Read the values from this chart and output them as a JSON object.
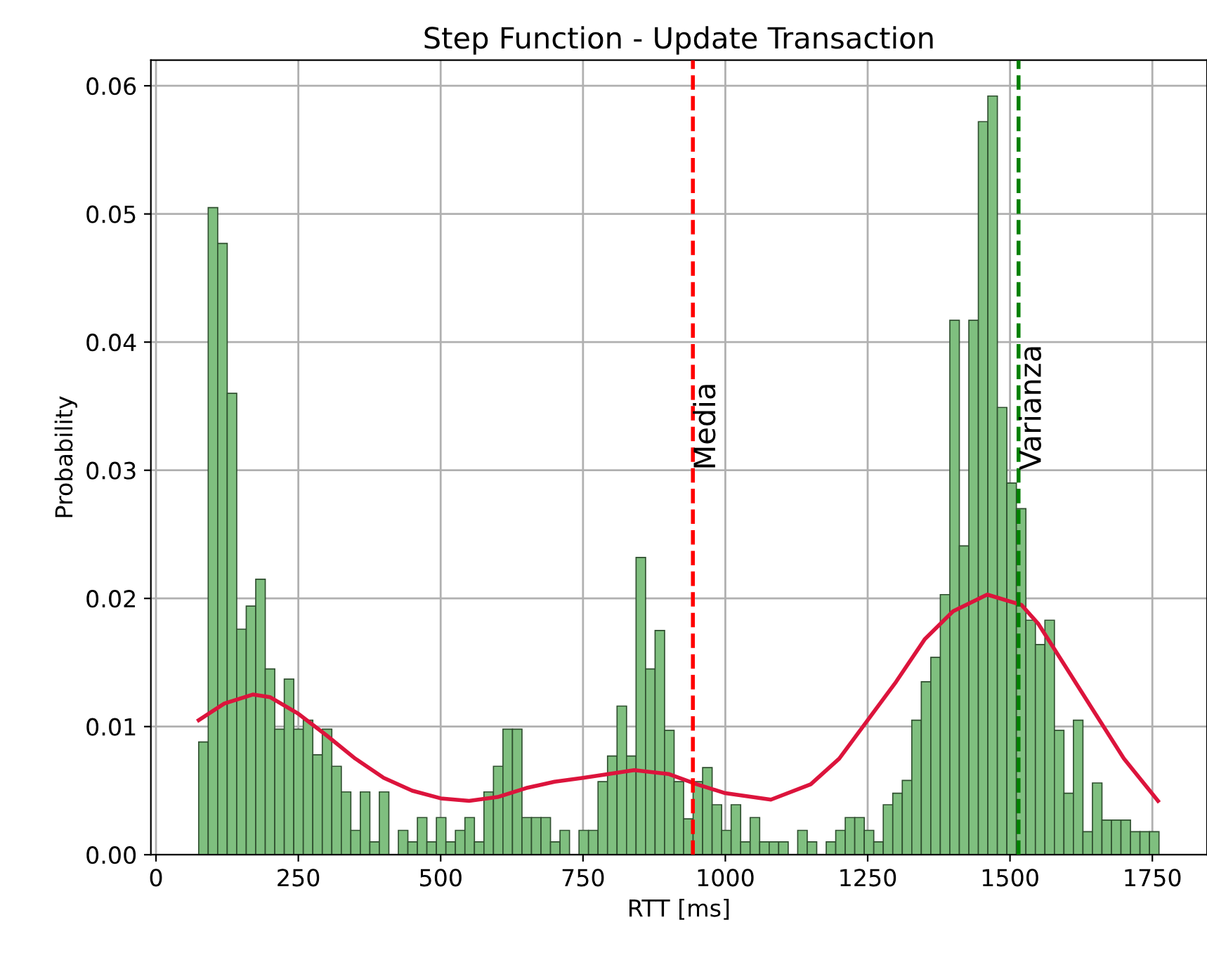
{
  "chart_data": {
    "type": "histogram",
    "title": "Step Function - Update Transaction",
    "xlabel": "RTT [ms]",
    "ylabel": "Probability",
    "series": [
      {
        "color": "#7fbf7f",
        "bins": [
          75,
          91.7,
          108.4,
          125.1,
          141.8,
          158.5,
          175.2,
          191.9,
          208.6,
          225.3,
          242,
          258.7,
          275.4,
          292.1,
          308.8,
          325.5,
          342.2,
          358.9,
          375.6,
          392.3,
          409,
          425.7,
          442.4,
          459.1,
          475.8,
          492.5,
          509.2,
          525.9,
          542.6,
          559.3,
          576,
          592.7,
          609.4,
          626.1,
          642.8,
          659.5,
          676.2,
          692.9,
          709.6,
          726.3,
          743,
          759.7,
          776.4,
          793.1,
          809.8,
          826.5,
          843.2,
          859.9,
          876.6,
          893.3,
          910,
          926.7,
          943.4,
          960.1,
          976.8,
          993.5,
          1010.2,
          1026.9,
          1043.6,
          1060.3,
          1077,
          1093.7,
          1110.4,
          1127.1,
          1143.8,
          1160.5,
          1177.2,
          1193.9,
          1210.6,
          1227.3,
          1244,
          1260.7,
          1277.4,
          1294.1,
          1310.8,
          1327.5,
          1344.2,
          1360.9,
          1377.6,
          1394.3,
          1411,
          1427.7,
          1444.4,
          1461.1,
          1477.8,
          1494.5,
          1511.2,
          1527.9,
          1544.6,
          1561.3,
          1578,
          1594.7,
          1611.4,
          1628.1,
          1644.8,
          1661.5,
          1678.2,
          1694.9,
          1711.6,
          1728.3,
          1745,
          1761.7
        ],
        "values": [
          0.0088,
          0.0505,
          0.0477,
          0.036,
          0.0176,
          0.0194,
          0.0215,
          0.0145,
          0.0098,
          0.0137,
          0.0098,
          0.0105,
          0.0078,
          0.0098,
          0.0069,
          0.0049,
          0.0019,
          0.0049,
          0.001,
          0.0049,
          0,
          0.0019,
          0.001,
          0.0029,
          0.001,
          0.0029,
          0.001,
          0.0019,
          0.0029,
          0.001,
          0.0049,
          0.0069,
          0.0098,
          0.0098,
          0.0029,
          0.0029,
          0.0029,
          0.001,
          0.0019,
          0,
          0.0019,
          0.0019,
          0.0057,
          0.0077,
          0.0116,
          0.0077,
          0.0232,
          0.0145,
          0.0175,
          0.0097,
          0.0057,
          0.0028,
          0.0057,
          0.0068,
          0.0039,
          0.0019,
          0.0039,
          0.001,
          0.0029,
          0.001,
          0.001,
          0.001,
          0,
          0.0019,
          0.001,
          0,
          0.001,
          0.0019,
          0.0029,
          0.0029,
          0.0019,
          0.001,
          0.0039,
          0.0048,
          0.0058,
          0.0105,
          0.0135,
          0.0154,
          0.0203,
          0.0417,
          0.0241,
          0.0417,
          0.0572,
          0.0592,
          0.0349,
          0.029,
          0.027,
          0.0183,
          0.0164,
          0.0183,
          0.0097,
          0.0048,
          0.0105,
          0.0018,
          0.0056,
          0.0027,
          0.0027,
          0.0027,
          0.0018,
          0.0018,
          0.0018
        ]
      },
      {
        "type": "line",
        "color": "#dc143c",
        "x": [
          75,
          120,
          170,
          200,
          250,
          300,
          350,
          400,
          450,
          500,
          550,
          600,
          650,
          700,
          750,
          840,
          900,
          950,
          1000,
          1080,
          1150,
          1200,
          1250,
          1300,
          1350,
          1400,
          1460,
          1520,
          1550,
          1600,
          1650,
          1700,
          1760
        ],
        "values": [
          0.0105,
          0.0118,
          0.0125,
          0.0123,
          0.011,
          0.0093,
          0.0075,
          0.006,
          0.005,
          0.0044,
          0.0042,
          0.0045,
          0.0052,
          0.0057,
          0.006,
          0.0066,
          0.0063,
          0.0055,
          0.0048,
          0.0043,
          0.0055,
          0.0075,
          0.0105,
          0.0135,
          0.0168,
          0.019,
          0.0203,
          0.0195,
          0.018,
          0.0145,
          0.011,
          0.0075,
          0.0042
        ]
      }
    ],
    "ref_lines": [
      {
        "axis": "x",
        "value": 943,
        "label": "Media",
        "color": "#ff0000",
        "line_style": "dashed"
      },
      {
        "axis": "x",
        "value": 1515,
        "label": "Varianza",
        "color": "#008000",
        "line_style": "dashed"
      }
    ],
    "xlim": [
      -9,
      1846
    ],
    "ylim": [
      0,
      0.062
    ],
    "xticks": [
      0,
      250,
      500,
      750,
      1000,
      1250,
      1500,
      1750
    ],
    "yticks": [
      {
        "value": 0,
        "label": "0.00"
      },
      {
        "value": 0.01,
        "label": "0.01"
      },
      {
        "value": 0.02,
        "label": "0.02"
      },
      {
        "value": 0.03,
        "label": "0.03"
      },
      {
        "value": 0.04,
        "label": "0.04"
      },
      {
        "value": 0.05,
        "label": "0.05"
      },
      {
        "value": 0.06,
        "label": "0.06"
      }
    ],
    "grid": true
  }
}
